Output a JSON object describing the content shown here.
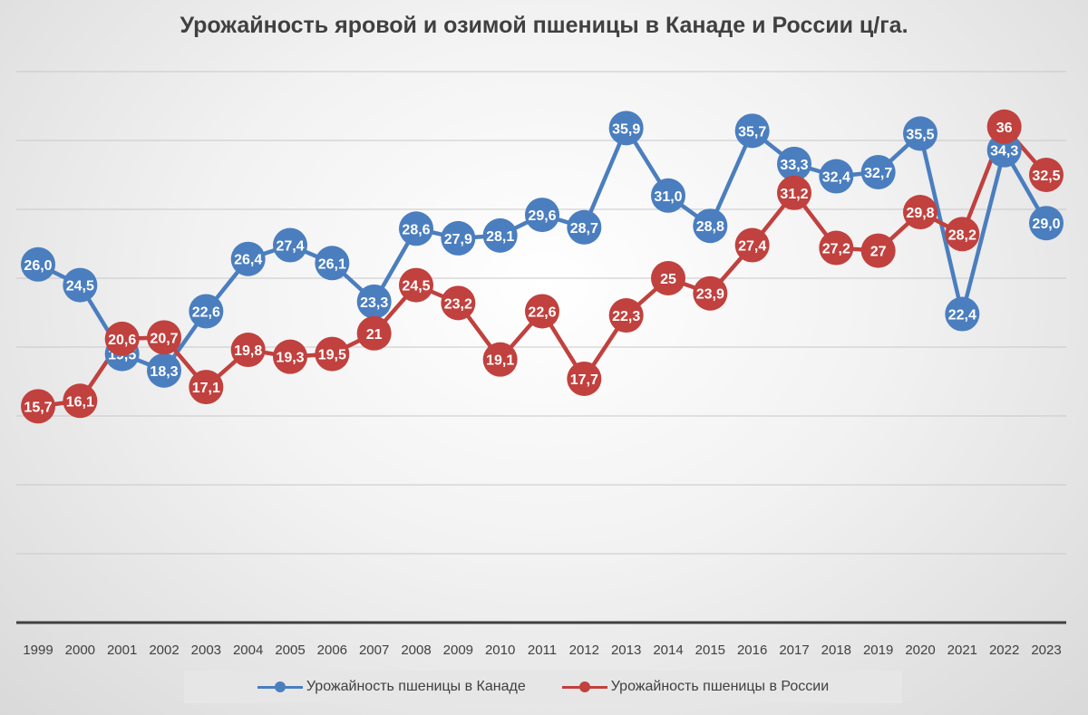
{
  "chart_data": {
    "type": "line",
    "title": "Урожайность яровой и озимой пшеницы в Канаде и России ц/га.",
    "xlabel": "",
    "ylabel": "",
    "ylim": [
      0,
      40
    ],
    "grid": true,
    "legend_position": "bottom",
    "categories": [
      "1999",
      "2000",
      "2001",
      "2002",
      "2003",
      "2004",
      "2005",
      "2006",
      "2007",
      "2008",
      "2009",
      "2010",
      "2011",
      "2012",
      "2013",
      "2014",
      "2015",
      "2016",
      "2017",
      "2018",
      "2019",
      "2020",
      "2021",
      "2022",
      "2023"
    ],
    "series": [
      {
        "name": "Урожайность пшеницы в Канаде",
        "color": "#4a7ebf",
        "values": [
          26.0,
          24.5,
          19.5,
          18.3,
          22.6,
          26.4,
          27.4,
          26.1,
          23.3,
          28.6,
          27.9,
          28.1,
          29.6,
          28.7,
          35.9,
          31.0,
          28.8,
          35.7,
          33.3,
          32.4,
          32.7,
          35.5,
          22.4,
          34.3,
          29.0
        ],
        "labels": [
          "26,0",
          "24,5",
          "19,5",
          "18,3",
          "22,6",
          "26,4",
          "27,4",
          "26,1",
          "23,3",
          "28,6",
          "27,9",
          "28,1",
          "29,6",
          "28,7",
          "35,9",
          "31,0",
          "28,8",
          "35,7",
          "33,3",
          "32,4",
          "32,7",
          "35,5",
          "22,4",
          "34,3",
          "29,0"
        ]
      },
      {
        "name": "Урожайность пшеницы в России",
        "color": "#c0413e",
        "values": [
          15.7,
          16.1,
          20.6,
          20.7,
          17.1,
          19.8,
          19.3,
          19.5,
          21,
          24.5,
          23.2,
          19.1,
          22.6,
          17.7,
          22.3,
          25,
          23.9,
          27.4,
          31.2,
          27.2,
          27,
          29.8,
          28.2,
          36,
          32.5
        ],
        "labels": [
          "15,7",
          "16,1",
          "20,6",
          "20,7",
          "17,1",
          "19,8",
          "19,3",
          "19,5",
          "21",
          "24,5",
          "23,2",
          "19,1",
          "22,6",
          "17,7",
          "22,3",
          "25",
          "23,9",
          "27,4",
          "31,2",
          "27,2",
          "27",
          "29,8",
          "28,2",
          "36",
          "32,5"
        ]
      }
    ]
  }
}
